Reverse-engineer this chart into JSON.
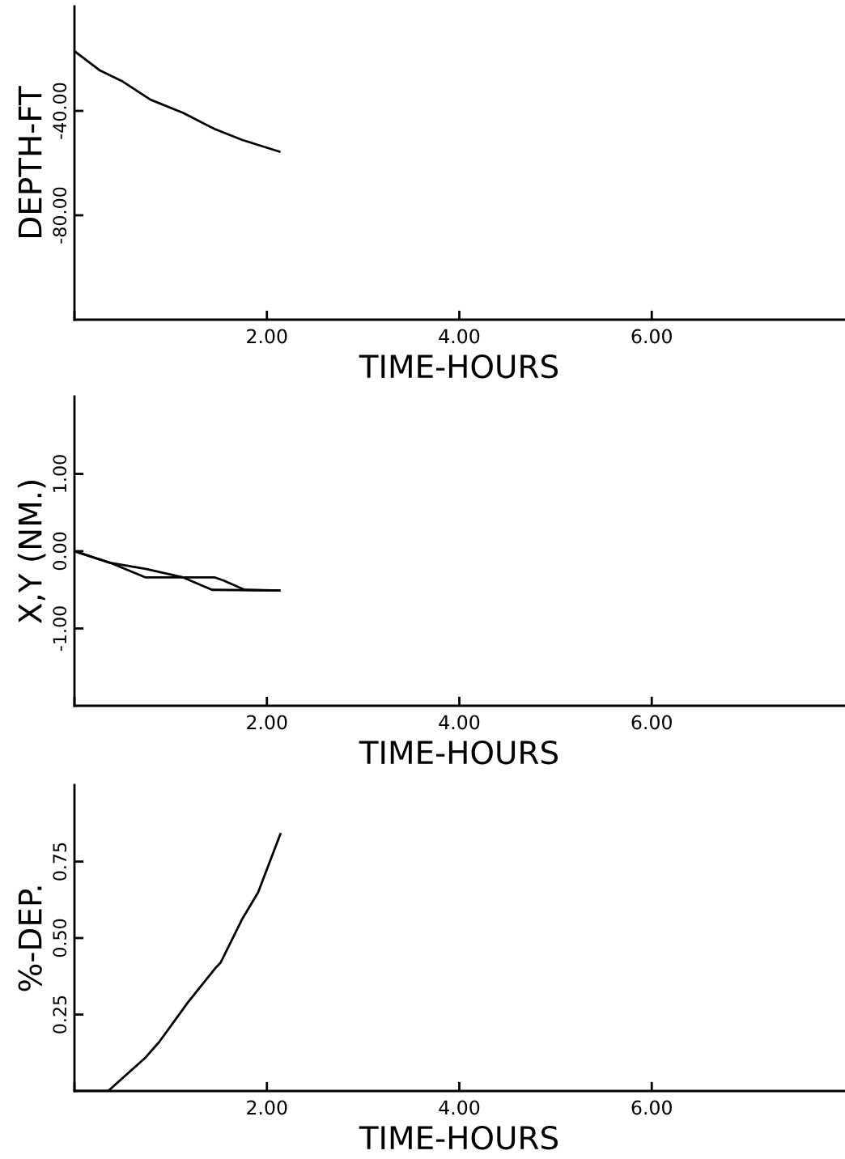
{
  "chart_data": [
    {
      "type": "line",
      "xlabel": "TIME-HOURS",
      "ylabel": "DEPTH-FT",
      "xlim": [
        0,
        8
      ],
      "xticks": [
        {
          "value": 0,
          "label": null
        },
        {
          "value": 2,
          "label": "2.00"
        },
        {
          "value": 4,
          "label": "4.00"
        },
        {
          "value": 6,
          "label": "6.00"
        }
      ],
      "ylim": [
        -120,
        0
      ],
      "yticks": [
        {
          "value": -80,
          "label": "-80.00"
        },
        {
          "value": -40,
          "label": "-40.00"
        }
      ],
      "grid": false,
      "series": [
        {
          "color": "#000000",
          "x": [
            0,
            0.26,
            0.49,
            0.79,
            1.13,
            1.46,
            1.74,
            2.13
          ],
          "values": [
            -17.1,
            -24.4,
            -28.5,
            -35.7,
            -40.8,
            -47.0,
            -51.1,
            -55.6
          ]
        }
      ]
    },
    {
      "type": "line",
      "xlabel": "TIME-HOURS",
      "ylabel": "X,Y (NM.)",
      "xlim": [
        0,
        8
      ],
      "xticks": [
        {
          "value": 0,
          "label": null
        },
        {
          "value": 2,
          "label": "2.00"
        },
        {
          "value": 4,
          "label": "4.00"
        },
        {
          "value": 6,
          "label": "6.00"
        }
      ],
      "ylim": [
        -2,
        2
      ],
      "yticks": [
        {
          "value": -1,
          "label": "-1.00"
        },
        {
          "value": 0,
          "label": "0.00"
        },
        {
          "value": 1,
          "label": "1.00"
        }
      ],
      "grid": false,
      "series": [
        {
          "color": "#000000",
          "x": [
            0,
            0.37,
            0.74,
            1.13,
            1.46,
            1.55,
            1.77,
            2.13
          ],
          "values": [
            0,
            -0.15,
            -0.23,
            -0.34,
            -0.34,
            -0.38,
            -0.5,
            -0.51
          ]
        },
        {
          "color": "#000000",
          "x": [
            0,
            0.37,
            0.74,
            1.13,
            1.43,
            2.13
          ],
          "values": [
            0,
            -0.15,
            -0.34,
            -0.34,
            -0.5,
            -0.51
          ]
        }
      ]
    },
    {
      "type": "line",
      "xlabel": "TIME-HOURS",
      "ylabel": "%-DEP.",
      "xlim": [
        0,
        8
      ],
      "xticks": [
        {
          "value": 0,
          "label": null
        },
        {
          "value": 2,
          "label": "2.00"
        },
        {
          "value": 4,
          "label": "4.00"
        },
        {
          "value": 6,
          "label": "6.00"
        }
      ],
      "ylim": [
        0,
        1
      ],
      "yticks": [
        {
          "value": 0.25,
          "label": "0.25"
        },
        {
          "value": 0.5,
          "label": "0.50"
        },
        {
          "value": 0.75,
          "label": "0.75"
        }
      ],
      "grid": false,
      "series": [
        {
          "color": "#000000",
          "x": [
            0,
            0.35,
            0.74,
            0.88,
            1.18,
            1.46,
            1.52,
            1.74,
            1.91,
            2.14
          ],
          "values": [
            0,
            0,
            0.11,
            0.16,
            0.29,
            0.4,
            0.42,
            0.56,
            0.65,
            0.84
          ]
        }
      ]
    }
  ]
}
